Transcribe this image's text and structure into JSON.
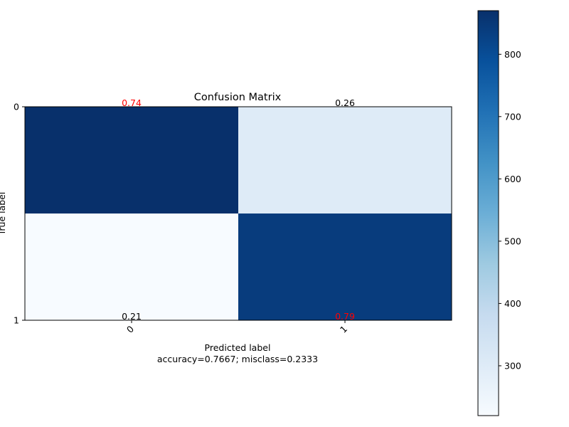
{
  "chart_data": {
    "type": "heatmap",
    "title": "Confusion Matrix",
    "xlabel": "Predicted label",
    "xlabel_note": "accuracy=0.7667; misclass=0.2333",
    "ylabel": "True label",
    "x_categories": [
      "0",
      "1"
    ],
    "y_categories": [
      "0",
      "1"
    ],
    "counts": [
      [
        870,
        300
      ],
      [
        220,
        840
      ]
    ],
    "cell_labels": [
      [
        "0.74",
        "0.26"
      ],
      [
        "0.21",
        "0.79"
      ]
    ],
    "cell_label_colors": [
      [
        "#ff0000",
        "#000000"
      ],
      [
        "#000000",
        "#ff0000"
      ]
    ],
    "colormap": "Blues",
    "colorbar": {
      "range": [
        220,
        870
      ],
      "ticks": [
        "300",
        "400",
        "500",
        "600",
        "700",
        "800"
      ],
      "tick_values": [
        300,
        400,
        500,
        600,
        700,
        800
      ]
    },
    "grid": false
  }
}
